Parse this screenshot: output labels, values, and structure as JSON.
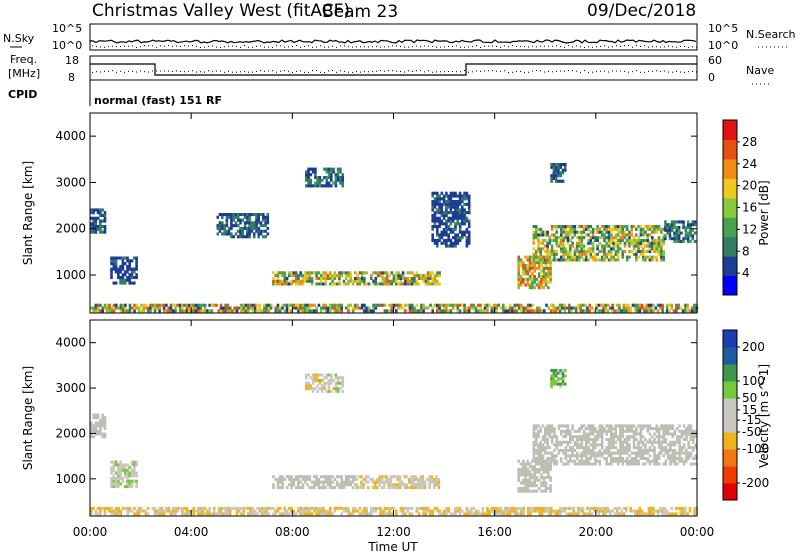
{
  "header": {
    "station": "Christmas Valley West (fitACF)",
    "beam": "Beam 23",
    "date": "09/Dec/2018"
  },
  "top_panels": {
    "nsky_label": "N.Sky",
    "nsky_ticks": [
      "10^5",
      "10^0"
    ],
    "nsearch_label": "N.Search",
    "nsearch_ticks": [
      "10^5",
      "10^0"
    ],
    "freq_label_1": "Freq.",
    "freq_label_2": "[MHz]",
    "freq_ticks": [
      "18",
      "8"
    ],
    "nave_label": "Nave",
    "nave_ticks": [
      "60",
      "0"
    ],
    "cpid_label": "CPID",
    "cpid_value": "normal (fast) 151 RF"
  },
  "colors": {
    "power_scale": [
      "#0000ff",
      "#1e3c96",
      "#327d64",
      "#4ba050",
      "#8cc83c",
      "#f0c81e",
      "#f08c14",
      "#e65014",
      "#e11414"
    ],
    "velocity_scale": [
      "#e10000",
      "#f03c00",
      "#f07814",
      "#f0b41e",
      "#c8c8c0",
      "#c8c8c0",
      "#78c83c",
      "#3c9650",
      "#1e5aa0",
      "#1e3cb4"
    ],
    "ground_scatter": "#bebeb4"
  },
  "chart_data": [
    {
      "type": "heatmap",
      "name": "power",
      "ylabel": "Slant Range [km]",
      "ylim": [
        180,
        4500
      ],
      "yticks": [
        1000,
        2000,
        3000,
        4000
      ],
      "xlim": [
        0,
        24
      ],
      "colorbar": {
        "label": "Power [dB]",
        "ticks": [
          4,
          8,
          12,
          16,
          20,
          24,
          28
        ],
        "range": [
          0,
          32
        ]
      },
      "regions": [
        {
          "t0": 7.2,
          "t1": 13.8,
          "r0": 780,
          "r1": 1080,
          "v0": 6,
          "v1": 26
        },
        {
          "t0": 17.5,
          "t1": 22.7,
          "r0": 1300,
          "r1": 2050,
          "v0": 6,
          "v1": 24
        },
        {
          "t0": 22.7,
          "t1": 23.9,
          "r0": 1700,
          "r1": 2150,
          "v0": 4,
          "v1": 14
        },
        {
          "t0": 16.9,
          "t1": 18.2,
          "r0": 700,
          "r1": 1400,
          "v0": 10,
          "v1": 28
        },
        {
          "t0": 0.0,
          "t1": 24.0,
          "r0": 200,
          "r1": 360,
          "v0": 4,
          "v1": 28
        },
        {
          "t0": 8.5,
          "t1": 10.0,
          "r0": 2900,
          "r1": 3300,
          "v0": 4,
          "v1": 12
        },
        {
          "t0": 0.0,
          "t1": 0.6,
          "r0": 1900,
          "r1": 2400,
          "v0": 4,
          "v1": 10
        },
        {
          "t0": 0.8,
          "t1": 1.8,
          "r0": 800,
          "r1": 1400,
          "v0": 4,
          "v1": 8
        },
        {
          "t0": 5.0,
          "t1": 7.0,
          "r0": 1800,
          "r1": 2300,
          "v0": 4,
          "v1": 10
        },
        {
          "t0": 13.5,
          "t1": 15.0,
          "r0": 1600,
          "r1": 2800,
          "v0": 4,
          "v1": 8
        },
        {
          "t0": 18.2,
          "t1": 18.8,
          "r0": 3000,
          "r1": 3400,
          "v0": 4,
          "v1": 10
        }
      ]
    },
    {
      "type": "heatmap",
      "name": "velocity",
      "ylabel": "Slant Range [km]",
      "ylim": [
        180,
        4500
      ],
      "yticks": [
        1000,
        2000,
        3000,
        4000
      ],
      "xlim": [
        0,
        24
      ],
      "xticks": [
        "00:00",
        "04:00",
        "08:00",
        "12:00",
        "16:00",
        "20:00",
        "00:00"
      ],
      "xlabel": "Time UT",
      "colorbar": {
        "label": "Velocity [m s^-1]",
        "ticks": [
          -200,
          -100,
          -50,
          -15,
          15,
          50,
          100,
          200
        ],
        "range": [
          -250,
          250
        ]
      },
      "regions": [
        {
          "t0": 7.2,
          "t1": 10.5,
          "r0": 780,
          "r1": 1080,
          "v0": -10,
          "v1": 10,
          "ground": true
        },
        {
          "t0": 10.5,
          "t1": 13.8,
          "r0": 780,
          "r1": 1080,
          "v0": -60,
          "v1": -20
        },
        {
          "t0": 17.5,
          "t1": 23.9,
          "r0": 1300,
          "r1": 2150,
          "v0": -10,
          "v1": 10,
          "ground": true
        },
        {
          "t0": 16.9,
          "t1": 18.2,
          "r0": 700,
          "r1": 1400,
          "v0": -10,
          "v1": 10,
          "ground": true
        },
        {
          "t0": 0.0,
          "t1": 24.0,
          "r0": 200,
          "r1": 380,
          "v0": -80,
          "v1": -20
        },
        {
          "t0": 8.5,
          "t1": 10.0,
          "r0": 2900,
          "r1": 3300,
          "v0": -60,
          "v1": 60
        },
        {
          "t0": 0.0,
          "t1": 0.6,
          "r0": 1900,
          "r1": 2400,
          "v0": -10,
          "v1": 10,
          "ground": true
        },
        {
          "t0": 0.8,
          "t1": 1.8,
          "r0": 800,
          "r1": 1400,
          "v0": 20,
          "v1": 60
        },
        {
          "t0": 18.2,
          "t1": 18.8,
          "r0": 3000,
          "r1": 3400,
          "v0": 40,
          "v1": 120
        }
      ]
    }
  ]
}
